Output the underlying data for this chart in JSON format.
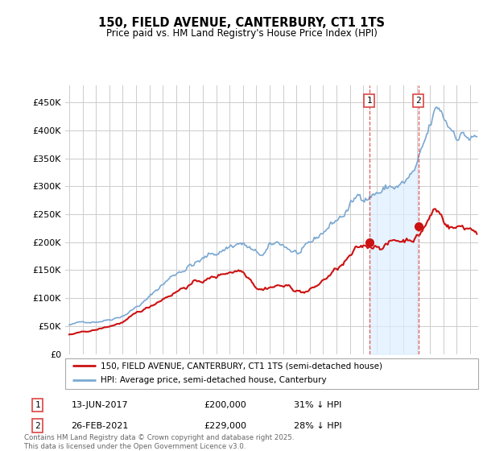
{
  "title": "150, FIELD AVENUE, CANTERBURY, CT1 1TS",
  "subtitle": "Price paid vs. HM Land Registry's House Price Index (HPI)",
  "background_color": "#ffffff",
  "plot_background": "#ffffff",
  "grid_color": "#cccccc",
  "hpi_color": "#7aa8d2",
  "hpi_fill_color": "#ddeeff",
  "price_color": "#cc1111",
  "vline_color": "#dd4444",
  "sale1_x": 2017.46,
  "sale2_x": 2021.12,
  "sale1_y": 200000,
  "sale2_y": 229000,
  "sale1_date": "13-JUN-2017",
  "sale1_price": "£200,000",
  "sale1_hpi": "31% ↓ HPI",
  "sale2_date": "26-FEB-2021",
  "sale2_price": "£229,000",
  "sale2_hpi": "28% ↓ HPI",
  "legend_line1": "150, FIELD AVENUE, CANTERBURY, CT1 1TS (semi-detached house)",
  "legend_line2": "HPI: Average price, semi-detached house, Canterbury",
  "footer": "Contains HM Land Registry data © Crown copyright and database right 2025.\nThis data is licensed under the Open Government Licence v3.0.",
  "ylim": [
    0,
    480000
  ],
  "yticks": [
    0,
    50000,
    100000,
    150000,
    200000,
    250000,
    300000,
    350000,
    400000,
    450000
  ],
  "xlim_start": 1994.7,
  "xlim_end": 2025.6
}
